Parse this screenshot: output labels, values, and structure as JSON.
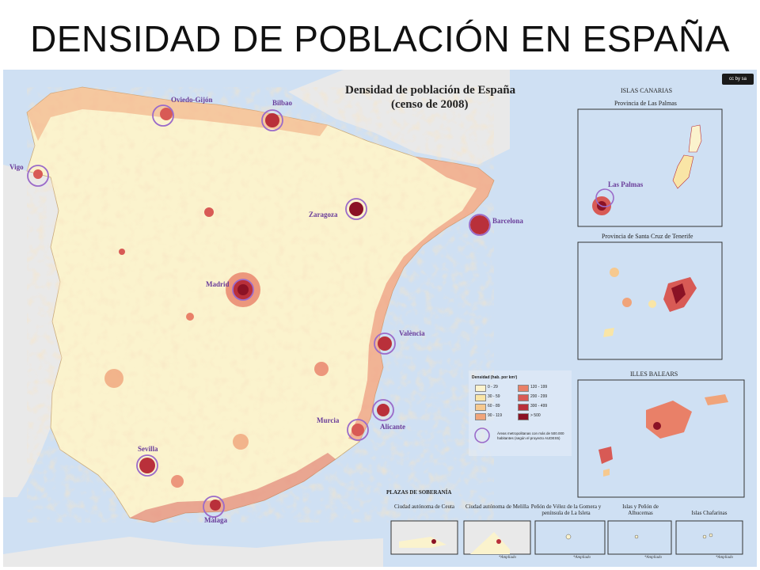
{
  "slide": {
    "title": "DENSIDAD DE POBLACIÓN EN ESPAÑA"
  },
  "map": {
    "title": "Densidad de población de España",
    "subtitle": "(censo de 2008)",
    "license_badge": "cc by sa",
    "colors": {
      "sea": "#cfe0f3",
      "neighbor": "#e9e9e9",
      "land_low": "#fbf3cd",
      "accent": "#9b6bc9"
    },
    "cities": [
      {
        "name": "Oviedo-Gijón"
      },
      {
        "name": "Bilbao"
      },
      {
        "name": "Vigo"
      },
      {
        "name": "Zaragoza"
      },
      {
        "name": "Barcelona"
      },
      {
        "name": "Madrid"
      },
      {
        "name": "València"
      },
      {
        "name": "Alicante"
      },
      {
        "name": "Murcia"
      },
      {
        "name": "Sevilla"
      },
      {
        "name": "Málaga"
      }
    ],
    "insets": {
      "canarias": "ISLAS CANARIAS",
      "las_palmas": "Provincia de Las Palmas",
      "las_palmas_city": "Las Palmas",
      "tenerife": "Provincia de Santa Cruz de Tenerife",
      "baleares": "ILLES BALEARS"
    },
    "legend": {
      "title": "Densidad (hab. por km²)",
      "classes": [
        {
          "label": "0 - 29",
          "color": "#fbf3cd"
        },
        {
          "label": "30 - 59",
          "color": "#f9e5a6"
        },
        {
          "label": "60 - 89",
          "color": "#f6c98f"
        },
        {
          "label": "90 - 119",
          "color": "#f0a47a"
        },
        {
          "label": "120 - 199",
          "color": "#e98068"
        },
        {
          "label": "200 - 299",
          "color": "#d85a55"
        },
        {
          "label": "300 - 499",
          "color": "#b9303a"
        },
        {
          "label": "> 500",
          "color": "#8b1225"
        }
      ],
      "metro_note": "Áreas metropolitanas con más de 500.000 habitantes (según el proyecto AUDES5)"
    },
    "plazas": {
      "title": "PLAZAS DE SOBERANÍA",
      "items": [
        {
          "label": "Ciudad autónoma de Ceuta",
          "note": ""
        },
        {
          "label": "Ciudad autónoma de Melilla",
          "note": "*Ampliado"
        },
        {
          "label": "Peñón de Vélez de la Gomera y península de La Isleta",
          "note": "*Ampliado"
        },
        {
          "label": "Islas y Peñón de Alhucemas",
          "note": "*Ampliado"
        },
        {
          "label": "Islas Chafarinas",
          "note": "*Ampliado"
        }
      ]
    }
  }
}
